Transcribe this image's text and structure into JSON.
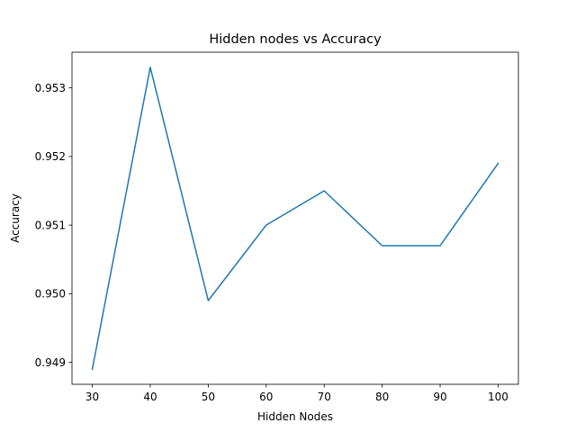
{
  "chart_data": {
    "type": "line",
    "title": "Hidden nodes vs Accuracy",
    "xlabel": "Hidden Nodes",
    "ylabel": "Accuracy",
    "x": [
      30,
      40,
      50,
      60,
      70,
      80,
      90,
      100
    ],
    "series": [
      {
        "values": [
          0.9489,
          0.9533,
          0.9499,
          0.951,
          0.9515,
          0.9507,
          0.9507,
          0.9519
        ],
        "color": "#1f77b4"
      }
    ],
    "xlim": [
      26.5,
      103.5
    ],
    "ylim": [
      0.94868,
      0.95352
    ],
    "xticks": [
      30,
      40,
      50,
      60,
      70,
      80,
      90,
      100
    ],
    "xtick_labels": [
      "30",
      "40",
      "50",
      "60",
      "70",
      "80",
      "90",
      "100"
    ],
    "yticks": [
      0.949,
      0.95,
      0.951,
      0.952,
      0.953
    ],
    "ytick_labels": [
      "0.949",
      "0.950",
      "0.951",
      "0.952",
      "0.953"
    ],
    "grid": false,
    "legend": "none"
  }
}
